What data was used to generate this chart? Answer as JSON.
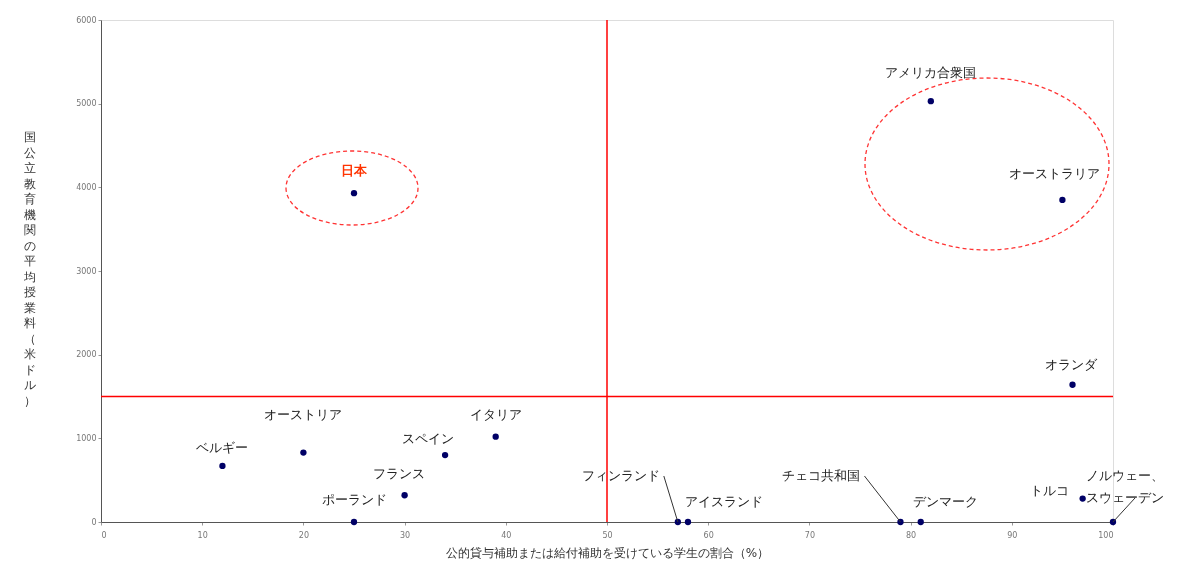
{
  "chart_data": {
    "type": "scatter",
    "xlabel": "公的貸与補助または給付補助を受けている学生の割合（%）",
    "ylabel": "国公立教育機関の平均授業料（米ドル）",
    "xlim": [
      0,
      100
    ],
    "ylim": [
      0,
      6000
    ],
    "xticks": [
      0,
      10,
      20,
      30,
      40,
      50,
      60,
      70,
      80,
      90,
      100
    ],
    "yticks": [
      0,
      1000,
      2000,
      3000,
      4000,
      5000,
      6000
    ],
    "grid": false,
    "marker": "circle",
    "series": [
      {
        "color": "#000066",
        "x": [
          25,
          82,
          95,
          96,
          20,
          12,
          39,
          34,
          30,
          25,
          57,
          58,
          79,
          81,
          97,
          100
        ],
        "values": [
          3930,
          5030,
          3850,
          1640,
          830,
          670,
          1020,
          800,
          320,
          0,
          0,
          0,
          0,
          0,
          280,
          0
        ]
      }
    ],
    "ref_lines": [
      {
        "axis": "x",
        "value": 50,
        "color": "#ff0000"
      },
      {
        "axis": "y",
        "value": 1500,
        "color": "#ff0000"
      }
    ],
    "annotations": [
      {
        "text": "日本",
        "x": 25,
        "y": 3930
      },
      {
        "text": "アメリカ合衆国",
        "x": 82,
        "y": 5030
      },
      {
        "text": "オーストラリア",
        "x": 95,
        "y": 3850
      },
      {
        "text": "オランダ",
        "x": 96,
        "y": 1640
      },
      {
        "text": "オーストリア",
        "x": 20,
        "y": 830
      },
      {
        "text": "ベルギー",
        "x": 12,
        "y": 670
      },
      {
        "text": "イタリア",
        "x": 39,
        "y": 1020
      },
      {
        "text": "スペイン",
        "x": 34,
        "y": 800
      },
      {
        "text": "フランス",
        "x": 30,
        "y": 320
      },
      {
        "text": "ポーランド",
        "x": 25,
        "y": 0
      },
      {
        "text": "フィンランド",
        "x": 57,
        "y": 0
      },
      {
        "text": "アイスランド",
        "x": 58,
        "y": 0
      },
      {
        "text": "チェコ共和国",
        "x": 79,
        "y": 0
      },
      {
        "text": "デンマーク",
        "x": 81,
        "y": 0
      },
      {
        "text": "トルコ",
        "x": 97,
        "y": 280
      },
      {
        "text": "ノルウェー、スウェーデン",
        "x": 100,
        "y": 0
      }
    ]
  }
}
